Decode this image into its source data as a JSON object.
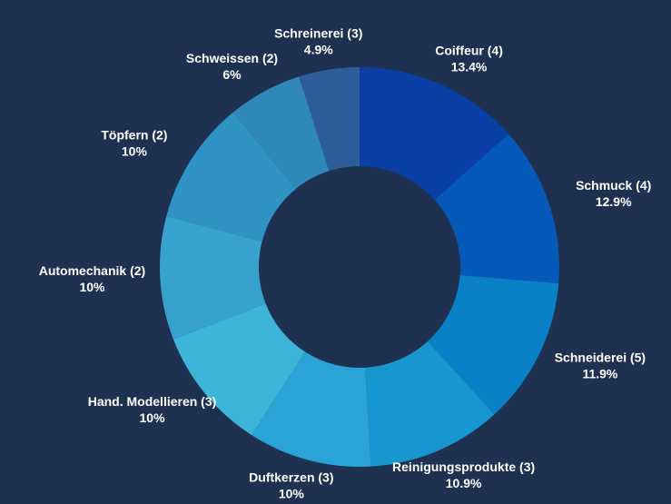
{
  "chart_data": {
    "type": "donut",
    "categories": [
      "Coiffeur (4)",
      "Schmuck (4)",
      "Schneiderei (5)",
      "Reinigungsprodukte (3)",
      "Duftkerzen (3)",
      "Hand. Modellieren (3)",
      "Automechanik (2)",
      "Töpfern (2)",
      "Schweissen (2)",
      "Schreinerei (3)"
    ],
    "values": [
      13.4,
      12.9,
      11.9,
      10.9,
      10,
      10,
      10,
      10,
      6,
      4.9
    ],
    "value_labels": [
      "13.4%",
      "12.9%",
      "11.9%",
      "10.9%",
      "10%",
      "10%",
      "10%",
      "10%",
      "6%",
      "4.9%"
    ],
    "colors": [
      "#0a3fa6",
      "#0559b8",
      "#0a80c6",
      "#1896d0",
      "#2aa4d6",
      "#3cb5d8",
      "#36a2cd",
      "#2f93c6",
      "#2e89ba",
      "#2d5d9b"
    ]
  }
}
